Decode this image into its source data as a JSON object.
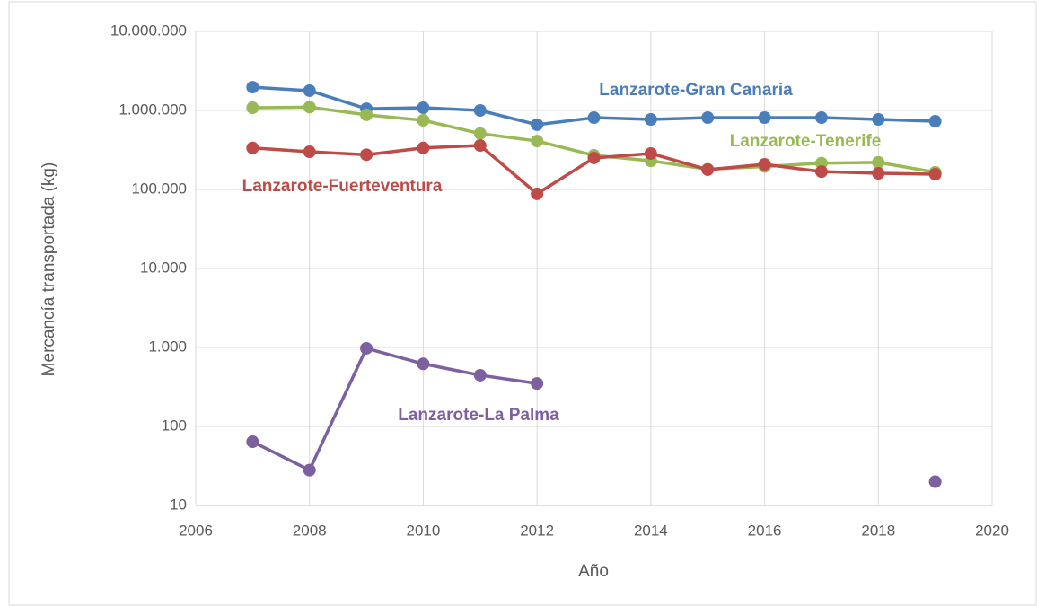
{
  "chart_data": {
    "type": "line",
    "x_label": "Año",
    "y_label": "Mercancía transportada (kg)",
    "x": [
      2007,
      2008,
      2009,
      2010,
      2011,
      2012,
      2013,
      2014,
      2015,
      2016,
      2017,
      2018,
      2019
    ],
    "series": [
      {
        "name": "Lanzarote-Gran Canaria",
        "color": "#4a7ebb",
        "values": [
          1970000,
          1780000,
          1050000,
          1080000,
          1000000,
          660000,
          810000,
          770000,
          810000,
          810000,
          810000,
          770000,
          730000
        ]
      },
      {
        "name": "Lanzarote-Tenerife",
        "color": "#98b954",
        "values": [
          1080000,
          1100000,
          880000,
          750000,
          510000,
          410000,
          270000,
          230000,
          180000,
          195000,
          215000,
          220000,
          165000
        ]
      },
      {
        "name": "Lanzarote-Fuerteventura",
        "color": "#be4b48",
        "values": [
          335000,
          300000,
          275000,
          335000,
          360000,
          88000,
          250000,
          285000,
          178000,
          208000,
          168000,
          160000,
          156000
        ]
      },
      {
        "name": "Lanzarote-La Palma",
        "color": "#7d60a0",
        "values": [
          64,
          28,
          975,
          620,
          445,
          350,
          null,
          null,
          null,
          null,
          null,
          null,
          20
        ]
      }
    ],
    "xlim": [
      2006,
      2020
    ],
    "xticks": [
      2006,
      2008,
      2010,
      2012,
      2014,
      2016,
      2018,
      2020
    ],
    "ylim": [
      10,
      10000000
    ],
    "log_y": true,
    "yticks": [
      10,
      100,
      {
        "value": 1000,
        "label": "1.000"
      },
      {
        "value": 10000,
        "label": "10.000"
      },
      {
        "value": 100000,
        "label": "100.000"
      },
      {
        "value": 1000000,
        "label": "1.000.000"
      },
      {
        "value": 10000000,
        "label": "10.000.000"
      }
    ],
    "grid": true
  }
}
